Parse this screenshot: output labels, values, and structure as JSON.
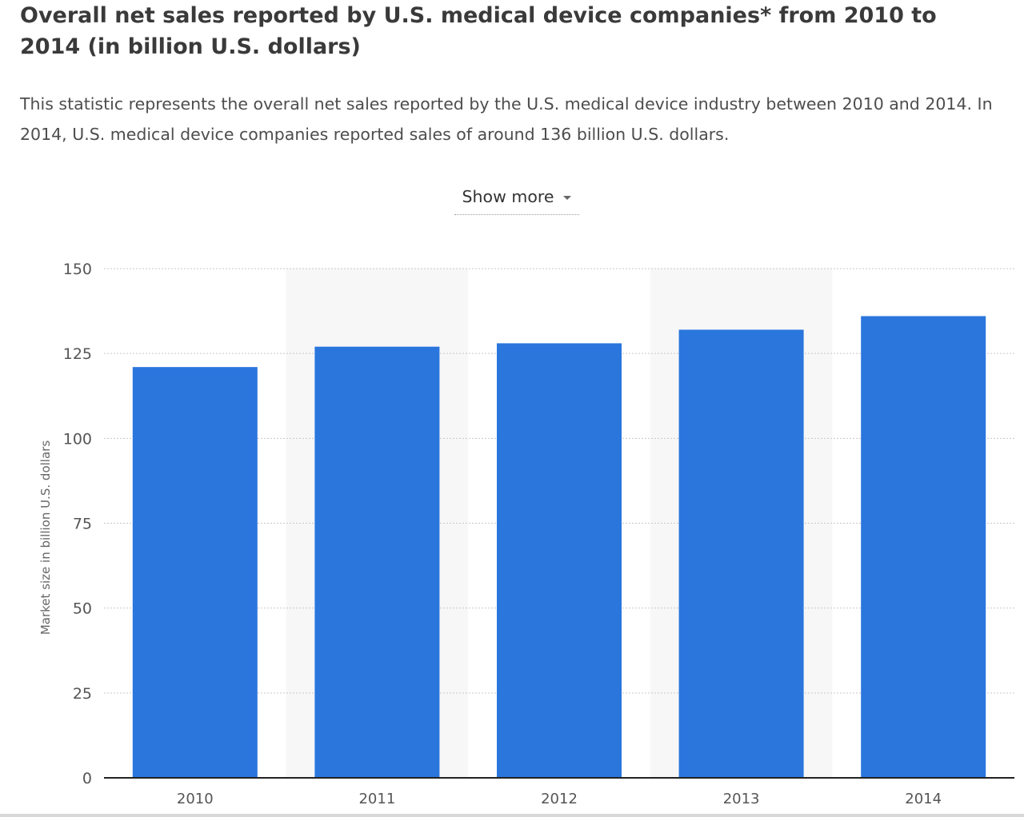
{
  "header": {
    "title": "Overall net sales reported by U.S. medical device companies* from 2010 to 2014 (in billion U.S. dollars)",
    "description": "This statistic represents the overall net sales reported by the U.S. medical device industry between 2010 and 2014. In 2014, U.S. medical device companies reported sales of around 136 billion U.S. dollars."
  },
  "show_more": {
    "label": "Show more",
    "icon": "caret-down-icon"
  },
  "chart_data": {
    "type": "bar",
    "categories": [
      "2010",
      "2011",
      "2012",
      "2013",
      "2014"
    ],
    "values": [
      121,
      127,
      128,
      132,
      136
    ],
    "xlabel": "",
    "ylabel": "Market size in billion U.S. dollars",
    "ylim": [
      0,
      150
    ],
    "yticks": [
      0,
      25,
      50,
      75,
      100,
      125,
      150
    ],
    "grid": true,
    "legend": "none",
    "colors": {
      "bar": "#2a76dd",
      "alt_band": "#f7f7f8",
      "grid": "#c9c9c9",
      "axis": "#222222",
      "tick_text": "#555555"
    }
  }
}
